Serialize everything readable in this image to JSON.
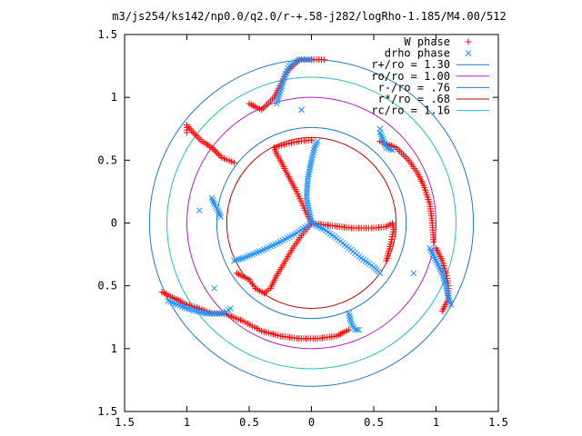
{
  "chart_data": {
    "type": "scatter",
    "title": "m3/js254/ks142/np0.0/q2.0/r-+.58-j282/logRho-1.185/M4.00/512",
    "xlabel": "",
    "ylabel": "",
    "xlim": [
      -1.5,
      1.5
    ],
    "ylim": [
      -1.5,
      1.5
    ],
    "x_tick_labels": [
      "1.5",
      "1",
      "0.5",
      "0",
      "0.5",
      "1",
      "1.5"
    ],
    "y_tick_labels": [
      "1.5",
      "1",
      "0.5",
      "0",
      "0.5",
      "1",
      "1.5"
    ],
    "tick_values": [
      -1.5,
      -1,
      -0.5,
      0,
      0.5,
      1,
      1.5
    ],
    "grid": false,
    "legend_position": "top-right",
    "circles": [
      {
        "name": "r+/ro = 1.30",
        "radius": 1.3,
        "color": "#1f78c8"
      },
      {
        "name": "ro/ro = 1.00",
        "radius": 1.0,
        "color": "#b020c0"
      },
      {
        "name": "r-/ro = .76",
        "radius": 0.76,
        "color": "#1f78c8"
      },
      {
        "name": "r*/ro = .68",
        "radius": 0.68,
        "color": "#c00000"
      },
      {
        "name": "rc/ro = 1.16",
        "radius": 1.16,
        "color": "#20c0c0"
      }
    ],
    "series": [
      {
        "name": "W phase",
        "marker": "+",
        "color": "#ff0000",
        "arms": [
          {
            "points": [
              [
                0.0,
                0.0
              ],
              [
                -0.05,
                0.1
              ],
              [
                -0.12,
                0.25
              ],
              [
                -0.2,
                0.4
              ],
              [
                -0.25,
                0.5
              ],
              [
                -0.28,
                0.55
              ],
              [
                -0.3,
                0.6
              ]
            ]
          },
          {
            "points": [
              [
                0.0,
                0.0
              ],
              [
                0.15,
                -0.02
              ],
              [
                0.32,
                -0.04
              ],
              [
                0.5,
                -0.04
              ],
              [
                0.6,
                -0.03
              ],
              [
                0.65,
                0.0
              ],
              [
                0.66,
                -0.05
              ],
              [
                0.64,
                -0.15
              ],
              [
                0.6,
                -0.3
              ]
            ]
          },
          {
            "points": [
              [
                0.0,
                0.0
              ],
              [
                -0.08,
                -0.1
              ],
              [
                -0.15,
                -0.2
              ],
              [
                -0.22,
                -0.32
              ],
              [
                -0.28,
                -0.42
              ],
              [
                -0.33,
                -0.52
              ],
              [
                -0.38,
                -0.56
              ],
              [
                -0.45,
                -0.52
              ],
              [
                -0.5,
                -0.45
              ],
              [
                -0.6,
                -0.4
              ]
            ]
          },
          {
            "points": [
              [
                -0.3,
                0.6
              ],
              [
                -0.2,
                0.63
              ],
              [
                -0.1,
                0.65
              ],
              [
                0.0,
                0.66
              ]
            ]
          },
          {
            "points": [
              [
                -0.62,
                0.48
              ],
              [
                -0.72,
                0.52
              ],
              [
                -0.8,
                0.6
              ],
              [
                -0.88,
                0.65
              ],
              [
                -0.95,
                0.72
              ],
              [
                -1.0,
                0.78
              ],
              [
                -1.0,
                0.72
              ]
            ]
          },
          {
            "points": [
              [
                -0.5,
                0.95
              ],
              [
                -0.4,
                0.9
              ],
              [
                -0.3,
                1.0
              ],
              [
                -0.2,
                1.2
              ],
              [
                -0.1,
                1.3
              ],
              [
                0.0,
                1.3
              ],
              [
                0.1,
                1.3
              ]
            ]
          },
          {
            "points": [
              [
                0.55,
                0.65
              ],
              [
                0.68,
                0.6
              ],
              [
                0.78,
                0.5
              ],
              [
                0.85,
                0.4
              ],
              [
                0.9,
                0.3
              ],
              [
                0.95,
                0.15
              ],
              [
                0.97,
                0.0
              ],
              [
                0.98,
                -0.15
              ]
            ]
          },
          {
            "points": [
              [
                1.0,
                -0.2
              ],
              [
                1.05,
                -0.3
              ],
              [
                1.08,
                -0.4
              ],
              [
                1.1,
                -0.5
              ],
              [
                1.1,
                -0.6
              ],
              [
                1.05,
                -0.7
              ]
            ]
          },
          {
            "points": [
              [
                -1.2,
                -0.55
              ],
              [
                -1.1,
                -0.6
              ],
              [
                -1.0,
                -0.65
              ],
              [
                -0.9,
                -0.68
              ],
              [
                -0.8,
                -0.72
              ],
              [
                -0.7,
                -0.72
              ]
            ]
          },
          {
            "points": [
              [
                -0.7,
                -0.72
              ],
              [
                -0.55,
                -0.78
              ],
              [
                -0.4,
                -0.86
              ],
              [
                -0.25,
                -0.9
              ],
              [
                -0.1,
                -0.92
              ],
              [
                0.05,
                -0.92
              ],
              [
                0.2,
                -0.9
              ],
              [
                0.3,
                -0.85
              ]
            ]
          }
        ]
      },
      {
        "name": "drho phase",
        "marker": "x",
        "color": "#1e90ff",
        "arms": [
          {
            "points": [
              [
                0.0,
                0.0
              ],
              [
                -0.02,
                0.1
              ],
              [
                -0.04,
                0.2
              ],
              [
                -0.03,
                0.35
              ],
              [
                0.0,
                0.5
              ],
              [
                0.03,
                0.62
              ],
              [
                0.05,
                0.65
              ]
            ]
          },
          {
            "points": [
              [
                0.0,
                0.0
              ],
              [
                0.1,
                -0.05
              ],
              [
                0.2,
                -0.12
              ],
              [
                0.3,
                -0.2
              ],
              [
                0.4,
                -0.28
              ],
              [
                0.5,
                -0.35
              ],
              [
                0.55,
                -0.4
              ]
            ]
          },
          {
            "points": [
              [
                0.0,
                0.0
              ],
              [
                -0.12,
                -0.08
              ],
              [
                -0.25,
                -0.15
              ],
              [
                -0.4,
                -0.22
              ],
              [
                -0.55,
                -0.28
              ],
              [
                -0.62,
                -0.3
              ]
            ]
          },
          {
            "points": [
              [
                -0.28,
                0.95
              ],
              [
                -0.25,
                1.05
              ],
              [
                -0.22,
                1.15
              ],
              [
                -0.18,
                1.25
              ],
              [
                -0.1,
                1.3
              ],
              [
                0.0,
                1.3
              ]
            ]
          },
          {
            "points": [
              [
                -0.8,
                0.2
              ],
              [
                -0.78,
                0.15
              ],
              [
                -0.75,
                0.1
              ],
              [
                -0.73,
                0.05
              ]
            ]
          },
          {
            "points": [
              [
                0.55,
                0.72
              ],
              [
                0.58,
                0.65
              ],
              [
                0.6,
                0.6
              ],
              [
                0.65,
                0.58
              ]
            ]
          },
          {
            "points": [
              [
                0.95,
                -0.2
              ],
              [
                1.0,
                -0.3
              ],
              [
                1.05,
                -0.4
              ],
              [
                1.08,
                -0.5
              ],
              [
                1.1,
                -0.6
              ],
              [
                1.12,
                -0.65
              ]
            ]
          },
          {
            "points": [
              [
                -1.15,
                -0.62
              ],
              [
                -1.0,
                -0.68
              ],
              [
                -0.85,
                -0.72
              ],
              [
                -0.7,
                -0.72
              ],
              [
                -0.65,
                -0.68
              ]
            ]
          },
          {
            "points": [
              [
                0.3,
                -0.72
              ],
              [
                0.32,
                -0.8
              ],
              [
                0.35,
                -0.85
              ],
              [
                0.38,
                -0.85
              ]
            ]
          },
          {
            "points": [
              [
                0.82,
                -0.4
              ],
              [
                -0.9,
                0.1
              ],
              [
                -0.78,
                -0.52
              ],
              [
                -0.08,
                0.9
              ],
              [
                0.55,
                0.75
              ]
            ]
          }
        ]
      }
    ]
  },
  "legend": {
    "items": [
      {
        "label": "W phase",
        "type": "marker",
        "marker": "+",
        "color": "#ff0000"
      },
      {
        "label": "drho phase",
        "type": "marker",
        "marker": "x",
        "color": "#1e90ff"
      },
      {
        "label": "r+/ro = 1.30",
        "type": "line",
        "color": "#1f78c8"
      },
      {
        "label": "ro/ro = 1.00",
        "type": "line",
        "color": "#b020c0"
      },
      {
        "label": "r-/ro = .76",
        "type": "line",
        "color": "#1f78c8"
      },
      {
        "label": "r*/ro = .68",
        "type": "line",
        "color": "#c00000"
      },
      {
        "label": "rc/ro = 1.16",
        "type": "line",
        "color": "#20c0c0"
      }
    ]
  }
}
